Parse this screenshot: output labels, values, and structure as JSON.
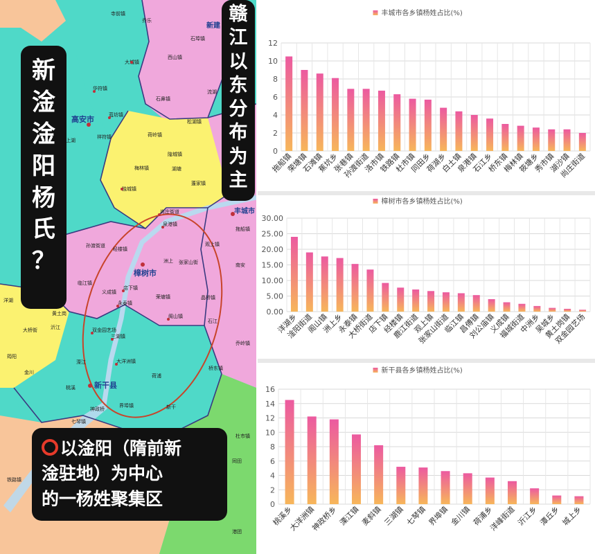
{
  "map": {
    "colors": {
      "water": "#b9d9ef",
      "teal": "#4fd9c8",
      "yellow": "#fbf270",
      "pink": "#f0a8dc",
      "salmon": "#f8c59a",
      "green": "#7cd96e",
      "lavender": "#c9b0e8",
      "border": "#3a3a80",
      "river": "#a9cfee",
      "ellipse": "#c8442a",
      "dot": "#c0303a"
    },
    "labels": {
      "gaoan": "高安市",
      "zhangshu": "樟树市",
      "xingan": "新干县",
      "fengcheng": "丰城市",
      "xinjian": "新建",
      "towns": [
        "寺前镇",
        "乔乐",
        "大城镇",
        "西山镇",
        "石埠镇",
        "华符镇",
        "石鼻镇",
        "蓝坊镇",
        "荷岭镇",
        "祥符镇",
        "上湖",
        "独城镇",
        "流湖",
        "松湖镇",
        "隍城镇",
        "湖塘",
        "梅林镇",
        "蓬家镇",
        "尚庄街道",
        "泉港镇",
        "拖船镇",
        "孙渡街道",
        "经楼镇",
        "张家山街",
        "观上镇",
        "荣塘镇",
        "阁山镇",
        "店下镇",
        "临江镇",
        "永泰镇",
        "洋湖",
        "义成镇",
        "洲上",
        "大桥街",
        "黄土岗",
        "双金园艺场",
        "三湖镇",
        "大洋洲镇",
        "溧江",
        "荷浦",
        "桃溪",
        "界埠镇",
        "新干",
        "神政桥",
        "七琴镇",
        "金川",
        "沂江",
        "筠阳",
        "南安",
        "晶桥镇",
        "乔岭镇",
        "桥东镇",
        "石江",
        "铁路镇",
        "杜市镇",
        "同田",
        "港团",
        "福民",
        "山联镇",
        "石江镇",
        "董丘镇"
      ]
    },
    "left_caption": [
      "新",
      "淦",
      "淦",
      "阳",
      "杨",
      "氏",
      "？"
    ],
    "top_caption": [
      "赣",
      "江",
      "以",
      "东",
      "分",
      "布",
      "为",
      "主"
    ],
    "bottom_caption": [
      "以淦阳（隋前新",
      "淦驻地）为中心",
      "的一杨姓聚集区"
    ]
  },
  "charts": [
    {
      "chart_data": {
        "type": "bar",
        "title": "丰城市各乡镇杨姓占比(%)",
        "legend_position": "top",
        "grid": true,
        "ylim": [
          0,
          12
        ],
        "yticks": [
          "0",
          "2",
          "4",
          "6",
          "8",
          "10",
          "12"
        ],
        "categories": [
          "拖船镇",
          "荣塘镇",
          "石滩镇",
          "蕉坑乡",
          "张巷镇",
          "孙渡街道",
          "洛市镇",
          "铁路镇",
          "杜市镇",
          "同田乡",
          "荷湖乡",
          "白土镇",
          "泉港镇",
          "石江乡",
          "桥东镇",
          "梅林镇",
          "筱塘乡",
          "秀市镇",
          "湖沙镇",
          "尚庄街道"
        ],
        "values": [
          10.5,
          9.0,
          8.6,
          8.1,
          6.9,
          6.9,
          6.7,
          6.3,
          5.8,
          5.7,
          4.8,
          4.4,
          4.0,
          3.6,
          3.0,
          2.8,
          2.6,
          2.4,
          2.4,
          2.0
        ]
      }
    },
    {
      "chart_data": {
        "type": "bar",
        "title": "樟树市各乡镇杨姓占比(%)",
        "legend_position": "top",
        "grid": true,
        "ylim": [
          0,
          30
        ],
        "yticks": [
          "0.00",
          "5.00",
          "10.00",
          "15.00",
          "20.00",
          "25.00",
          "30.00"
        ],
        "categories": [
          "洋湖乡",
          "淦阳街道",
          "阁山镇",
          "洲上乡",
          "永泰镇",
          "大桥街道",
          "店下镇",
          "经楼镇",
          "鹿江街道",
          "观上镇",
          "张家山街道",
          "临江镇",
          "昌傅镇",
          "刘公庙镇",
          "义成镇",
          "福城街道",
          "中洲乡",
          "吴城乡",
          "黄土岗镇",
          "双金园艺场"
        ],
        "values": [
          24.0,
          19.0,
          17.7,
          17.2,
          15.3,
          13.5,
          9.2,
          7.7,
          7.1,
          6.6,
          6.2,
          5.9,
          5.3,
          4.0,
          3.0,
          2.5,
          1.8,
          1.2,
          0.9,
          0.6
        ]
      }
    },
    {
      "chart_data": {
        "type": "bar",
        "title": "新干县各乡镇杨姓占比(%)",
        "legend_position": "top",
        "grid": true,
        "ylim": [
          0,
          16
        ],
        "yticks": [
          "0",
          "2",
          "4",
          "6",
          "8",
          "10",
          "12",
          "14",
          "16"
        ],
        "categories": [
          "桃溪乡",
          "大洋洲镇",
          "神政桥乡",
          "溧江镇",
          "麦斜镇",
          "三湖镇",
          "七琴镇",
          "界埠镇",
          "金川镇",
          "荷浦乡",
          "洋峰街道",
          "沂江乡",
          "潭丘乡",
          "城上乡"
        ],
        "values": [
          14.5,
          12.2,
          11.8,
          9.7,
          8.2,
          5.2,
          5.1,
          4.6,
          4.3,
          3.7,
          3.2,
          2.2,
          1.2,
          1.1
        ]
      }
    }
  ]
}
